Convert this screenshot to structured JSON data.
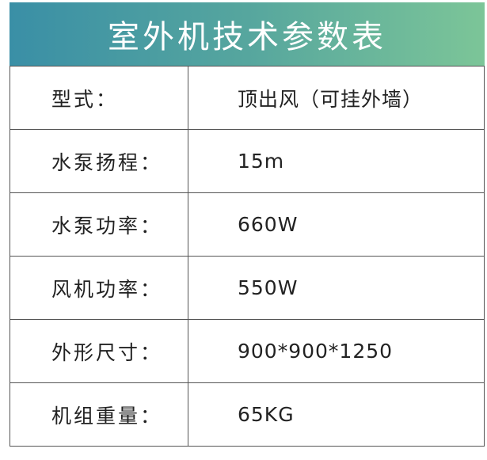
{
  "title": "室外机技术参数表",
  "rows": [
    {
      "label": "型式：",
      "value": "顶出风（可挂外墙）"
    },
    {
      "label": "水泵扬程：",
      "value": "15m"
    },
    {
      "label": "水泵功率：",
      "value": "660W"
    },
    {
      "label": "风机功率：",
      "value": "550W"
    },
    {
      "label": "外形尺寸：",
      "value": "900*900*1250"
    },
    {
      "label": "机组重量：",
      "value": "65KG"
    }
  ],
  "colors": {
    "header_start": "#3a8fa6",
    "header_end": "#7cc598"
  }
}
